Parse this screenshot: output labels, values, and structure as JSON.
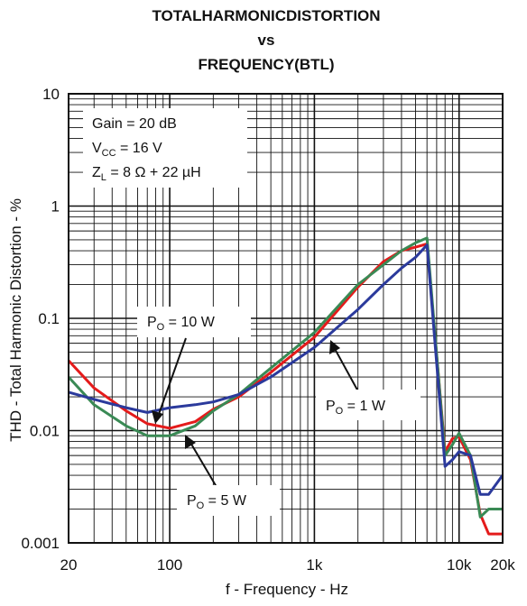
{
  "chart_data": {
    "type": "line",
    "title_lines": [
      "TOTALHARMONICDISTORTION",
      "vs",
      "FREQUENCY(BTL)"
    ],
    "xlabel": "f - Frequency - Hz",
    "ylabel": "THD - Total Harmonic Distortion - %",
    "x_scale": "log",
    "y_scale": "log",
    "xlim": [
      20,
      20000
    ],
    "ylim": [
      0.001,
      10
    ],
    "grid": true,
    "x_ticks": [
      {
        "value": 20,
        "label": "20"
      },
      {
        "value": 100,
        "label": "100"
      },
      {
        "value": 1000,
        "label": "1k"
      },
      {
        "value": 10000,
        "label": "10k"
      },
      {
        "value": 20000,
        "label": "20k"
      }
    ],
    "y_ticks": [
      {
        "value": 10,
        "label": "10"
      },
      {
        "value": 1,
        "label": "1"
      },
      {
        "value": 0.1,
        "label": "0.1"
      },
      {
        "value": 0.01,
        "label": "0.01"
      },
      {
        "value": 0.001,
        "label": "0.001"
      }
    ],
    "conditions": {
      "gain": "Gain = 20 dB",
      "vcc_main": "V",
      "vcc_sub": "CC",
      "vcc_rest": " = 16 V",
      "zl_main": "Z",
      "zl_sub": "L",
      "zl_rest": " = 8 Ω + 22 µH"
    },
    "series": [
      {
        "name": "P_O = 10 W",
        "color": "#e41b1b",
        "points": [
          [
            20,
            0.042
          ],
          [
            30,
            0.024
          ],
          [
            50,
            0.015
          ],
          [
            70,
            0.0115
          ],
          [
            100,
            0.0105
          ],
          [
            150,
            0.012
          ],
          [
            200,
            0.0155
          ],
          [
            300,
            0.02
          ],
          [
            500,
            0.033
          ],
          [
            1000,
            0.068
          ],
          [
            2000,
            0.19
          ],
          [
            3000,
            0.32
          ],
          [
            4000,
            0.4
          ],
          [
            5000,
            0.43
          ],
          [
            6000,
            0.46
          ],
          [
            8000,
            0.0065
          ],
          [
            9000,
            0.0085
          ],
          [
            10000,
            0.0088
          ],
          [
            12000,
            0.0055
          ],
          [
            14000,
            0.0018
          ],
          [
            16000,
            0.0012
          ],
          [
            20000,
            0.0012
          ]
        ]
      },
      {
        "name": "P_O = 5 W",
        "color": "#3a8a55",
        "points": [
          [
            20,
            0.03
          ],
          [
            30,
            0.017
          ],
          [
            50,
            0.011
          ],
          [
            70,
            0.009
          ],
          [
            100,
            0.009
          ],
          [
            150,
            0.011
          ],
          [
            200,
            0.015
          ],
          [
            300,
            0.021
          ],
          [
            500,
            0.036
          ],
          [
            1000,
            0.075
          ],
          [
            2000,
            0.2
          ],
          [
            3000,
            0.3
          ],
          [
            4000,
            0.4
          ],
          [
            5000,
            0.47
          ],
          [
            6000,
            0.52
          ],
          [
            8000,
            0.006
          ],
          [
            9000,
            0.0075
          ],
          [
            10000,
            0.0095
          ],
          [
            12000,
            0.006
          ],
          [
            14000,
            0.0017
          ],
          [
            16000,
            0.002
          ],
          [
            20000,
            0.002
          ]
        ]
      },
      {
        "name": "P_O = 1 W",
        "color": "#2b3a9c",
        "points": [
          [
            20,
            0.022
          ],
          [
            30,
            0.019
          ],
          [
            50,
            0.016
          ],
          [
            70,
            0.0145
          ],
          [
            100,
            0.016
          ],
          [
            150,
            0.017
          ],
          [
            200,
            0.018
          ],
          [
            300,
            0.021
          ],
          [
            500,
            0.03
          ],
          [
            1000,
            0.055
          ],
          [
            2000,
            0.12
          ],
          [
            3000,
            0.2
          ],
          [
            4000,
            0.28
          ],
          [
            5000,
            0.35
          ],
          [
            6000,
            0.45
          ],
          [
            8000,
            0.0048
          ],
          [
            9000,
            0.0055
          ],
          [
            10000,
            0.0065
          ],
          [
            12000,
            0.006
          ],
          [
            14000,
            0.0027
          ],
          [
            16000,
            0.0027
          ],
          [
            20000,
            0.004
          ]
        ]
      }
    ],
    "annotations": [
      {
        "main": "P",
        "sub": "O",
        "rest": " = 10 W",
        "series": "P_O = 10 W"
      },
      {
        "main": "P",
        "sub": "O",
        "rest": " = 1 W",
        "series": "P_O = 1 W"
      },
      {
        "main": "P",
        "sub": "O",
        "rest": " = 5 W",
        "series": "P_O = 5 W"
      }
    ]
  }
}
